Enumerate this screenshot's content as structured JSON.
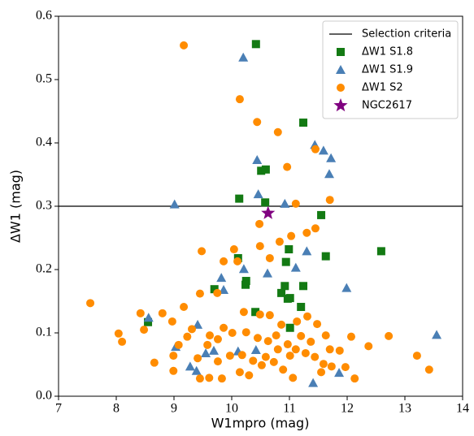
{
  "chart_data": {
    "type": "scatter",
    "xlabel": "W1mpro (mag)",
    "ylabel": "ΔW1 (mag)",
    "xlim": [
      7,
      14
    ],
    "ylim": [
      0,
      0.6
    ],
    "xticks": [
      7,
      8,
      9,
      10,
      11,
      12,
      13,
      14
    ],
    "yticks": [
      {
        "value": 0,
        "label": "0.0"
      },
      0.1,
      0.2,
      0.3,
      0.4,
      0.5,
      0.6
    ],
    "legend": "upper right",
    "hline": {
      "name": "Selection criteria",
      "y": 0.3,
      "color": "#000000"
    },
    "series": [
      {
        "name": "ΔW1 S1.8",
        "color": "#137a13",
        "marker": "square",
        "x": [
          10.42,
          11.24,
          10.51,
          10.59,
          10.13,
          10.58,
          11.55,
          12.59,
          11.63,
          10.99,
          10.94,
          10.11,
          10.25,
          10.24,
          10.92,
          11.24,
          9.7,
          10.86,
          10.97,
          11.01,
          11.2,
          10.41,
          8.55,
          11.01
        ],
        "values": [
          0.556,
          0.432,
          0.356,
          0.358,
          0.312,
          0.306,
          0.286,
          0.229,
          0.221,
          0.232,
          0.212,
          0.218,
          0.182,
          0.176,
          0.174,
          0.174,
          0.169,
          0.163,
          0.154,
          0.155,
          0.141,
          0.133,
          0.117,
          0.108
        ]
      },
      {
        "name": "ΔW1 S1.9",
        "color": "#4a7fb5",
        "marker": "triangle",
        "x": [
          10.2,
          9.01,
          10.44,
          11.44,
          11.59,
          11.72,
          11.69,
          10.92,
          10.46,
          9.82,
          10.21,
          11.3,
          11.11,
          9.86,
          11.99,
          10.62,
          8.56,
          9.41,
          9.03,
          9.28,
          9.39,
          9.55,
          9.69,
          10.11,
          11.41,
          11.86,
          13.55,
          10.42
        ],
        "values": [
          0.535,
          0.303,
          0.373,
          0.397,
          0.388,
          0.376,
          0.351,
          0.304,
          0.319,
          0.187,
          0.201,
          0.229,
          0.203,
          0.168,
          0.171,
          0.194,
          0.124,
          0.113,
          0.078,
          0.047,
          0.04,
          0.068,
          0.072,
          0.071,
          0.021,
          0.037,
          0.097,
          0.073
        ]
      },
      {
        "name": "ΔW1 S2",
        "color": "#ff8c00",
        "marker": "circle",
        "x": [
          9.17,
          10.14,
          10.44,
          10.8,
          11.45,
          10.96,
          11.7,
          11.11,
          10.48,
          9.48,
          10.04,
          10.49,
          10.83,
          11.03,
          11.3,
          11.45,
          10.1,
          9.86,
          10.66,
          7.55,
          8.04,
          8.1,
          8.42,
          8.48,
          8.8,
          8.97,
          9.17,
          9.45,
          9.75,
          10.21,
          10.49,
          8.66,
          8.99,
          8.99,
          9.08,
          9.23,
          9.45,
          9.61,
          9.83,
          10.14,
          10.3,
          9.62,
          9.86,
          10.01,
          10.25,
          10.45,
          10.63,
          10.77,
          10.97,
          11.11,
          11.28,
          11.44,
          11.59,
          11.73,
          11.87,
          12.07,
          12.13,
          11.97,
          12.37,
          12.72,
          13.21,
          13.42,
          11.63,
          11.48,
          11.31,
          11.13,
          10.86,
          10.66,
          10.73,
          10.89,
          11.06,
          10.52,
          9.97,
          9.76,
          9.41,
          11.7,
          11.37,
          11.2,
          11.01,
          11.55,
          10.8,
          10.59,
          10.37,
          10.18,
          9.58,
          9.76,
          9.31
        ],
        "values": [
          0.554,
          0.469,
          0.433,
          0.417,
          0.39,
          0.362,
          0.31,
          0.304,
          0.272,
          0.229,
          0.232,
          0.237,
          0.244,
          0.253,
          0.258,
          0.265,
          0.213,
          0.213,
          0.218,
          0.147,
          0.099,
          0.086,
          0.131,
          0.105,
          0.131,
          0.118,
          0.141,
          0.162,
          0.163,
          0.133,
          0.129,
          0.053,
          0.04,
          0.064,
          0.081,
          0.094,
          0.028,
          0.029,
          0.028,
          0.038,
          0.033,
          0.096,
          0.108,
          0.1,
          0.101,
          0.092,
          0.087,
          0.096,
          0.082,
          0.074,
          0.068,
          0.062,
          0.051,
          0.047,
          0.072,
          0.094,
          0.028,
          0.046,
          0.079,
          0.095,
          0.064,
          0.042,
          0.096,
          0.114,
          0.126,
          0.118,
          0.113,
          0.128,
          0.054,
          0.042,
          0.029,
          0.049,
          0.064,
          0.055,
          0.06,
          0.074,
          0.086,
          0.095,
          0.064,
          0.038,
          0.074,
          0.062,
          0.056,
          0.065,
          0.081,
          0.09,
          0.106
        ]
      },
      {
        "name": "NGC2617",
        "color": "#800080",
        "marker": "star",
        "x": [
          10.63
        ],
        "values": [
          0.289
        ]
      }
    ]
  }
}
